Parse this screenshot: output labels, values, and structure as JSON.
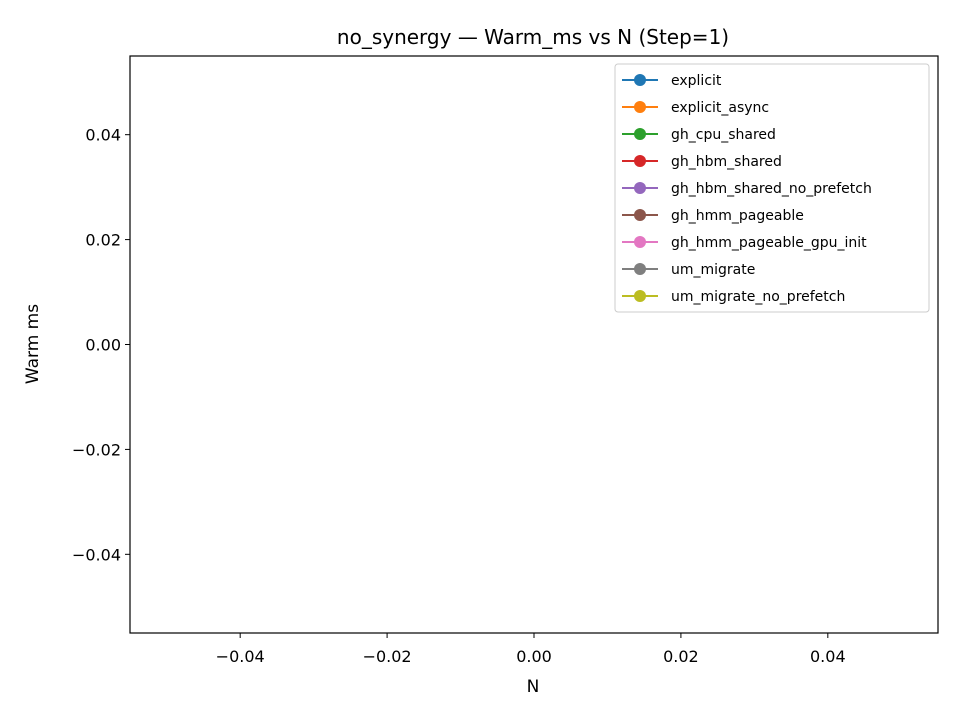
{
  "chart_data": {
    "type": "line",
    "title": "no_synergy — Warm_ms vs N (Step=1)",
    "xlabel": "N",
    "ylabel": "Warm ms",
    "xlim": [
      -0.055,
      0.055
    ],
    "ylim": [
      -0.055,
      0.055
    ],
    "xticks": [
      -0.04,
      -0.02,
      0.0,
      0.02,
      0.04
    ],
    "yticks": [
      -0.04,
      -0.02,
      0.0,
      0.02,
      0.04
    ],
    "xtick_labels": [
      "−0.04",
      "−0.02",
      "0.00",
      "0.02",
      "0.04"
    ],
    "ytick_labels": [
      "−0.04",
      "−0.02",
      "0.00",
      "0.02",
      "0.04"
    ],
    "grid": false,
    "legend_position": "top-right",
    "series": [
      {
        "name": "explicit",
        "color": "#1f77b4",
        "x": [],
        "y": []
      },
      {
        "name": "explicit_async",
        "color": "#ff7f0e",
        "x": [],
        "y": []
      },
      {
        "name": "gh_cpu_shared",
        "color": "#2ca02c",
        "x": [],
        "y": []
      },
      {
        "name": "gh_hbm_shared",
        "color": "#d62728",
        "x": [],
        "y": []
      },
      {
        "name": "gh_hbm_shared_no_prefetch",
        "color": "#9467bd",
        "x": [],
        "y": []
      },
      {
        "name": "gh_hmm_pageable",
        "color": "#8c564b",
        "x": [],
        "y": []
      },
      {
        "name": "gh_hmm_pageable_gpu_init",
        "color": "#e377c2",
        "x": [],
        "y": []
      },
      {
        "name": "um_migrate",
        "color": "#7f7f7f",
        "x": [],
        "y": []
      },
      {
        "name": "um_migrate_no_prefetch",
        "color": "#bcbd22",
        "x": [],
        "y": []
      }
    ]
  }
}
